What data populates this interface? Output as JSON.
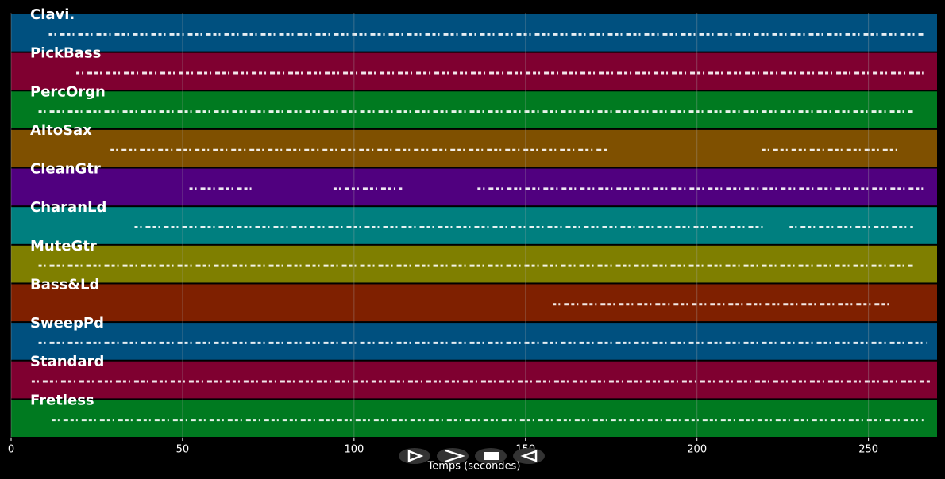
{
  "chart_data": {
    "type": "timeline",
    "x_label": "Temps (secondes)",
    "xlim": [
      0,
      270
    ],
    "xticks": [
      0,
      50,
      100,
      150,
      200,
      250
    ],
    "grid": true,
    "tracks": [
      {
        "name": "Clavi.",
        "color": "#00507f",
        "segments": [
          [
            11,
            266
          ]
        ]
      },
      {
        "name": "PickBass",
        "color": "#7f0030",
        "segments": [
          [
            19,
            266
          ]
        ]
      },
      {
        "name": "PercOrgn",
        "color": "#007a20",
        "segments": [
          [
            8,
            263
          ]
        ]
      },
      {
        "name": "AltoSax",
        "color": "#7f5000",
        "segments": [
          [
            29,
            174
          ],
          [
            219,
            259
          ]
        ]
      },
      {
        "name": "CleanGtr",
        "color": "#50007f",
        "segments": [
          [
            52,
            71
          ],
          [
            94,
            114
          ],
          [
            136,
            266
          ]
        ]
      },
      {
        "name": "CharanLd",
        "color": "#007f7f",
        "segments": [
          [
            36,
            220
          ],
          [
            227,
            263
          ]
        ]
      },
      {
        "name": "MuteGtr",
        "color": "#7f7f00",
        "segments": [
          [
            8,
            263
          ]
        ]
      },
      {
        "name": "Bass&Ld",
        "color": "#7f2000",
        "segments": [
          [
            158,
            257
          ]
        ]
      },
      {
        "name": "SweepPd",
        "color": "#00507f",
        "segments": [
          [
            8,
            267
          ]
        ]
      },
      {
        "name": "Standard",
        "color": "#7f0030",
        "segments": [
          [
            6,
            268
          ]
        ]
      },
      {
        "name": "Fretless",
        "color": "#007a20",
        "segments": [
          [
            12,
            266
          ]
        ]
      }
    ]
  }
}
